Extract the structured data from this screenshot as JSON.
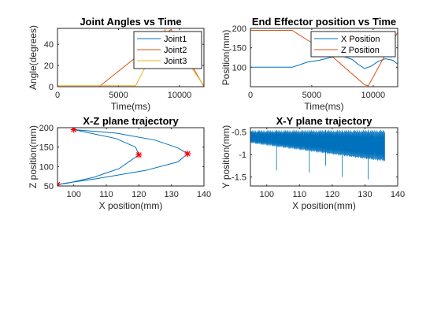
{
  "chart_data": [
    {
      "type": "line",
      "title": "Joint Angles vs Time",
      "xlabel": "Time(ms)",
      "ylabel": "Angle(degrees)",
      "xlim": [
        0,
        12000
      ],
      "ylim": [
        0,
        55
      ],
      "xticks": [
        0,
        5000,
        10000
      ],
      "yticks": [
        0,
        20,
        40
      ],
      "legend": "top-right",
      "series": [
        {
          "name": "Joint1",
          "color": "#0072bd",
          "x": [
            0,
            12000
          ],
          "y": [
            0,
            0
          ]
        },
        {
          "name": "Joint2",
          "color": "#d95319",
          "x": [
            0,
            3400,
            9300,
            12000
          ],
          "y": [
            0,
            0,
            54,
            0
          ]
        },
        {
          "name": "Joint3",
          "color": "#edb120",
          "x": [
            0,
            6400,
            8800,
            12000
          ],
          "y": [
            1,
            1,
            54,
            1
          ]
        }
      ]
    },
    {
      "type": "line",
      "title": "End Effector position vs Time",
      "xlabel": "Time(ms)",
      "ylabel": "Position(mm)",
      "xlim": [
        0,
        12000
      ],
      "ylim": [
        50,
        200
      ],
      "xticks": [
        0,
        5000,
        10000
      ],
      "yticks": [
        100,
        150,
        200
      ],
      "legend": "top-right",
      "series": [
        {
          "name": "X Position",
          "color": "#0072bd",
          "x": [
            0,
            3400,
            3900,
            4600,
            5600,
            6500,
            7400,
            8300,
            8800,
            9300,
            9800,
            10400,
            11000,
            11600,
            12000
          ],
          "y": [
            100,
            100,
            105,
            113,
            118,
            125,
            130,
            120,
            107,
            97,
            102,
            115,
            122,
            118,
            108
          ]
        },
        {
          "name": "Z Position",
          "color": "#d95319",
          "x": [
            0,
            3400,
            6400,
            9300,
            9600,
            12000
          ],
          "y": [
            195,
            195,
            135,
            55,
            52,
            190
          ]
        }
      ]
    },
    {
      "type": "line",
      "title": "X-Z plane trajectory",
      "xlabel": "X position(mm)",
      "ylabel": "Z position(mm)",
      "xlim": [
        95,
        140
      ],
      "ylim": [
        50,
        200
      ],
      "xticks": [
        100,
        110,
        120,
        130,
        140
      ],
      "yticks": [
        50,
        100,
        150,
        200
      ],
      "series": [
        {
          "color": "#0072bd",
          "x": [
            100,
            113,
            125,
            132,
            135,
            132,
            122,
            108,
            98,
            95,
            98,
            106,
            114,
            120,
            119,
            113,
            100
          ],
          "y": [
            195,
            186,
            168,
            148,
            133,
            112,
            90,
            70,
            58,
            54,
            57,
            72,
            95,
            130,
            150,
            172,
            195
          ]
        }
      ],
      "markers": {
        "color": "#ff0000",
        "x": [
          100,
          120,
          135,
          95
        ],
        "y": [
          195,
          130,
          133,
          54
        ]
      }
    },
    {
      "type": "line",
      "title": "X-Y plane trajectory",
      "xlabel": "X position(mm)",
      "ylabel": "Y position(mm)",
      "xlim": [
        95,
        140
      ],
      "ylim": [
        -1.7,
        -0.4
      ],
      "xticks": [
        100,
        110,
        120,
        130,
        140
      ],
      "yticks": [
        -0.5,
        -1,
        -1.5
      ],
      "series": [
        {
          "color": "#0072bd",
          "x": [
            95,
            100,
            105,
            110,
            115,
            120,
            125,
            130,
            136
          ],
          "y": [
            -0.75,
            -0.8,
            -0.85,
            -0.9,
            -0.95,
            -1.0,
            -1.05,
            -1.1,
            -1.15
          ],
          "upper": -0.45,
          "spikes": [
            {
              "x": 103,
              "y": -1.35
            },
            {
              "x": 113,
              "y": -1.4
            },
            {
              "x": 118,
              "y": -1.25
            },
            {
              "x": 123,
              "y": -1.5
            },
            {
              "x": 131,
              "y": -1.55
            }
          ]
        }
      ]
    }
  ]
}
